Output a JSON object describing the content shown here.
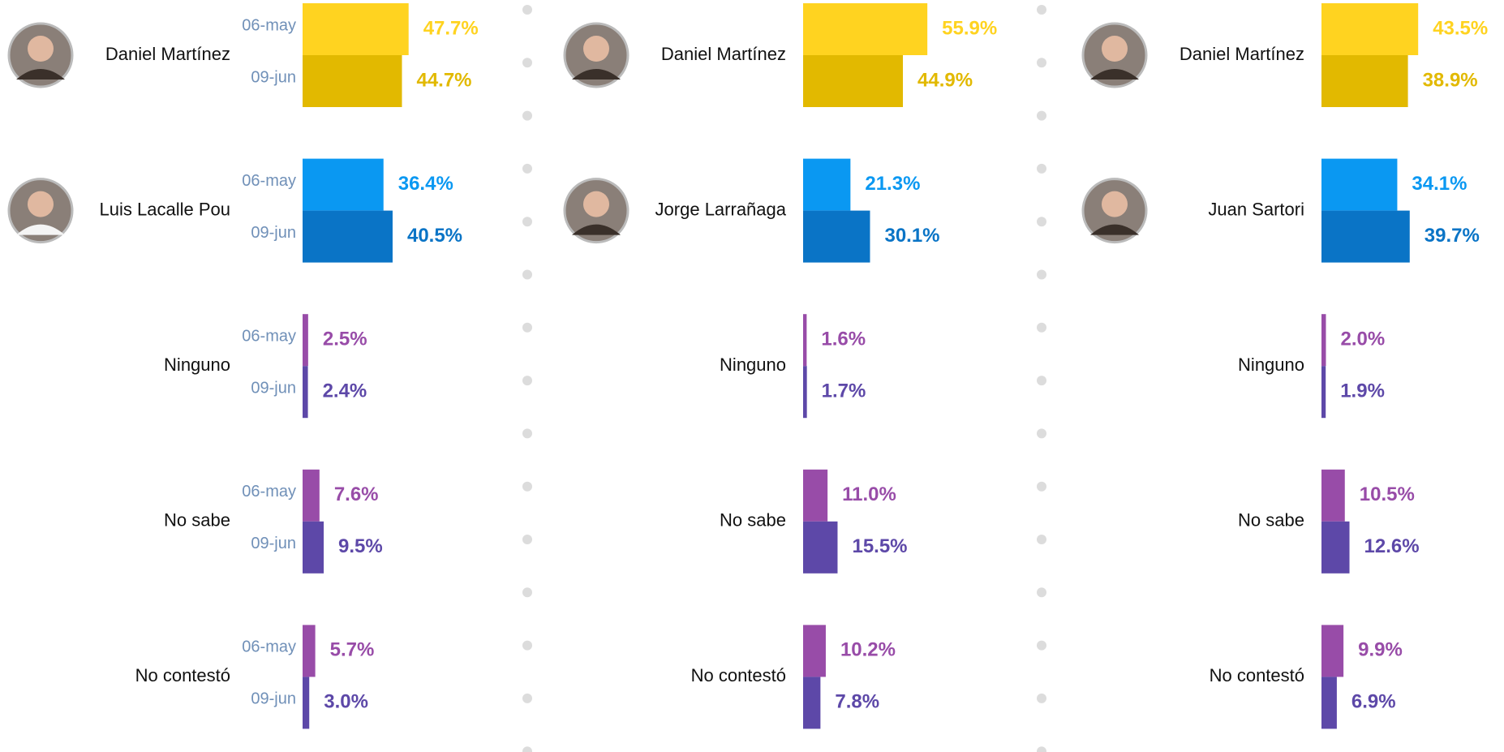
{
  "chart_data": [
    {
      "type": "bar",
      "orientation": "horizontal",
      "categories": [
        "Daniel  Martínez",
        "Luis Lacalle Pou",
        "Ninguno",
        "No sabe",
        "No contestó"
      ],
      "series": [
        {
          "name": "06-may",
          "values": [
            47.7,
            36.4,
            2.5,
            7.6,
            5.7
          ],
          "value_labels": [
            "47.7%",
            "36.4%",
            "2.5%",
            "7.6%",
            "5.7%"
          ],
          "colors": [
            "#FFD320",
            "#0A98F2",
            "#984CA8",
            "#984CA8",
            "#984CA8"
          ]
        },
        {
          "name": "09-jun",
          "values": [
            44.7,
            40.5,
            2.4,
            9.5,
            3.0
          ],
          "value_labels": [
            "44.7%",
            "40.5%",
            "2.4%",
            "9.5%",
            "3.0%"
          ],
          "colors": [
            "#E2B900",
            "#0A74C6",
            "#5D48A8",
            "#5D48A8",
            "#5D48A8"
          ]
        }
      ]
    },
    {
      "type": "bar",
      "orientation": "horizontal",
      "categories": [
        "Daniel  Martínez",
        "Jorge Larrañaga",
        "Ninguno",
        "No sabe",
        "No contestó"
      ],
      "series": [
        {
          "values": [
            55.9,
            21.3,
            1.6,
            11.0,
            10.2
          ],
          "value_labels": [
            "55.9%",
            "21.3%",
            "1.6%",
            "11.0%",
            "10.2%"
          ],
          "colors": [
            "#FFD320",
            "#0A98F2",
            "#984CA8",
            "#984CA8",
            "#984CA8"
          ]
        },
        {
          "values": [
            44.9,
            30.1,
            1.7,
            15.5,
            7.8
          ],
          "value_labels": [
            "44.9%",
            "30.1%",
            "1.7%",
            "15.5%",
            "7.8%"
          ],
          "colors": [
            "#E2B900",
            "#0A74C6",
            "#5D48A8",
            "#5D48A8",
            "#5D48A8"
          ]
        }
      ]
    },
    {
      "type": "bar",
      "orientation": "horizontal",
      "categories": [
        "Daniel  Martínez",
        "Juan Sartori",
        "Ninguno",
        "No sabe",
        "No contestó"
      ],
      "series": [
        {
          "values": [
            43.5,
            34.1,
            2.0,
            10.5,
            9.9
          ],
          "value_labels": [
            "43.5%",
            "34.1%",
            "2.0%",
            "10.5%",
            "9.9%"
          ],
          "colors": [
            "#FFD320",
            "#0A98F2",
            "#984CA8",
            "#984CA8",
            "#984CA8"
          ]
        },
        {
          "values": [
            38.9,
            39.7,
            1.9,
            12.6,
            6.9
          ],
          "value_labels": [
            "38.9%",
            "39.7%",
            "1.9%",
            "12.6%",
            "6.9%"
          ],
          "colors": [
            "#E2B900",
            "#0A74C6",
            "#5D48A8",
            "#5D48A8",
            "#5D48A8"
          ]
        }
      ]
    }
  ]
}
